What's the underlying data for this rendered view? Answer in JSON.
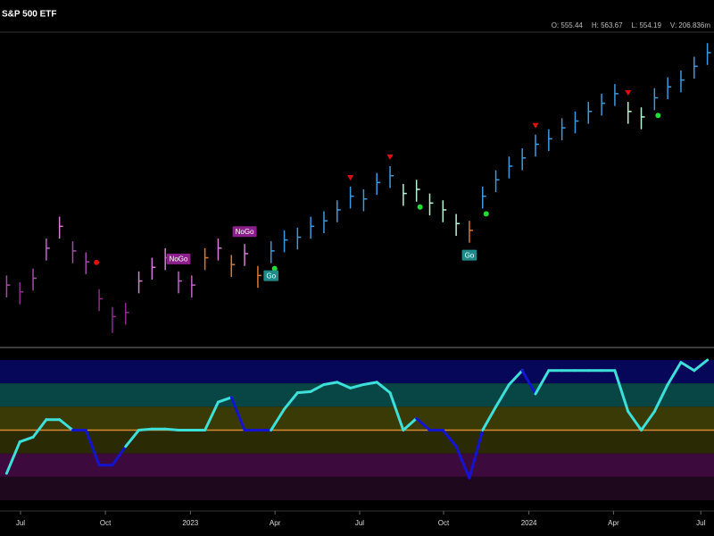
{
  "chart_data": [
    {
      "type": "ohlc",
      "title": "S&P 500 ETF",
      "quote": [
        "O: 555.44",
        "H: 563.67",
        "L: 554.19",
        "V: 206.836m"
      ],
      "xlim": [
        0,
        54
      ],
      "ylim": [
        340,
        570
      ],
      "close": [
        385,
        380,
        390,
        412,
        428,
        410,
        402,
        375,
        362,
        365,
        388,
        398,
        405,
        388,
        385,
        405,
        412,
        400,
        408,
        392,
        410,
        418,
        420,
        428,
        432,
        440,
        450,
        448,
        460,
        465,
        452,
        455,
        445,
        440,
        430,
        425,
        450,
        462,
        472,
        478,
        488,
        492,
        500,
        505,
        512,
        518,
        525,
        512,
        508,
        522,
        530,
        535,
        545,
        555
      ],
      "high": [
        392,
        387,
        397,
        419,
        435,
        417,
        409,
        382,
        369,
        372,
        395,
        405,
        412,
        395,
        392,
        412,
        419,
        407,
        415,
        399,
        417,
        425,
        427,
        435,
        439,
        447,
        457,
        455,
        467,
        472,
        459,
        462,
        452,
        447,
        437,
        432,
        457,
        469,
        479,
        485,
        495,
        499,
        507,
        512,
        519,
        525,
        532,
        519,
        515,
        529,
        537,
        542,
        552,
        562
      ],
      "low": [
        376,
        371,
        381,
        403,
        419,
        401,
        393,
        366,
        350,
        356,
        379,
        389,
        396,
        379,
        376,
        396,
        403,
        391,
        399,
        383,
        401,
        409,
        411,
        419,
        423,
        431,
        441,
        439,
        451,
        456,
        443,
        446,
        436,
        431,
        421,
        416,
        441,
        453,
        463,
        469,
        479,
        483,
        491,
        496,
        503,
        509,
        516,
        503,
        499,
        513,
        521,
        526,
        536,
        546
      ],
      "bar_colors": [
        "#a24ca8",
        "#8c2d8c",
        "#a24ca8",
        "#c066c6",
        "#d47fd4",
        "#a24ca8",
        "#a24ca8",
        "#8c2d8c",
        "#8c2d8c",
        "#8c2d8c",
        "#d47fd4",
        "#d47fd4",
        "#d47fd4",
        "#c066c6",
        "#c066c6",
        "#d87a30",
        "#d47fd4",
        "#d87a30",
        "#d47fd4",
        "#d87a30",
        "#3b9be0",
        "#3b9be0",
        "#3b9be0",
        "#3b9be0",
        "#3b9be0",
        "#3b9be0",
        "#3b9be0",
        "#3b9be0",
        "#3b9be0",
        "#3b9be0",
        "#b6f5d0",
        "#b6f5d0",
        "#b6f5d0",
        "#b6f5d0",
        "#b6f5d0",
        "#d87a30",
        "#3b9be0",
        "#3b9be0",
        "#3b9be0",
        "#3b9be0",
        "#3b9be0",
        "#3b9be0",
        "#3b9be0",
        "#3b9be0",
        "#3b9be0",
        "#3b9be0",
        "#3b9be0",
        "#b6f5d0",
        "#b6f5d0",
        "#3b9be0",
        "#3b9be0",
        "#3b9be0",
        "#3b9be0",
        "#3b9be0"
      ],
      "sell_signals": [
        26,
        29,
        40,
        47
      ],
      "sell_color": "#e01010",
      "go_dots": [
        20,
        31,
        36,
        49
      ],
      "go_dot_color": "#22dd33",
      "nogo_dots": [
        7
      ],
      "nogo_dot_color": "#e01010",
      "annotations": [
        {
          "text": "NoGo",
          "x": 13,
          "position": "above",
          "color": "#8b1f8b"
        },
        {
          "text": "NoGo",
          "x": 18,
          "position": "above",
          "color": "#8b1f8b"
        },
        {
          "text": "Go",
          "x": 20,
          "position": "below",
          "color": "#1f8a8a"
        },
        {
          "text": "Go",
          "x": 35,
          "position": "below",
          "color": "#1f8a8a"
        }
      ]
    },
    {
      "type": "oscillator",
      "xlim": [
        0,
        54
      ],
      "ylim": [
        -6,
        6
      ],
      "values": [
        -3.7,
        -1.0,
        -0.6,
        0.9,
        0.9,
        0.0,
        0.0,
        -3.0,
        -3.0,
        -1.4,
        0.0,
        0.1,
        0.1,
        0.0,
        0.0,
        0.0,
        2.4,
        2.8,
        0.0,
        0.0,
        0.0,
        1.8,
        3.2,
        3.3,
        3.9,
        4.1,
        3.6,
        3.9,
        4.1,
        3.2,
        0.0,
        1.0,
        0.0,
        0.0,
        -1.4,
        -4.1,
        0.0,
        2.0,
        3.9,
        5.1,
        3.1,
        5.1,
        5.1,
        5.1,
        5.1,
        5.1,
        5.1,
        1.6,
        0.0,
        1.6,
        3.9,
        5.8,
        5.1,
        6.0
      ],
      "line_colors": [
        "#3de0d8",
        "#3de0d8",
        "#3de0d8",
        "#3de0d8",
        "#3de0d8",
        "#3de0d8",
        "#1414d0",
        "#1414d0",
        "#1414d0",
        "#1414d0",
        "#3de0d8",
        "#3de0d8",
        "#3de0d8",
        "#3de0d8",
        "#3de0d8",
        "#3de0d8",
        "#3de0d8",
        "#3de0d8",
        "#1414d0",
        "#1414d0",
        "#1414d0",
        "#3de0d8",
        "#3de0d8",
        "#3de0d8",
        "#3de0d8",
        "#3de0d8",
        "#3de0d8",
        "#3de0d8",
        "#3de0d8",
        "#3de0d8",
        "#3de0d8",
        "#3de0d8",
        "#1414d0",
        "#1414d0",
        "#1414d0",
        "#1414d0",
        "#1414d0",
        "#3de0d8",
        "#3de0d8",
        "#3de0d8",
        "#1414d0",
        "#3de0d8",
        "#3de0d8",
        "#3de0d8",
        "#3de0d8",
        "#3de0d8",
        "#3de0d8",
        "#3de0d8",
        "#3de0d8",
        "#3de0d8",
        "#3de0d8",
        "#3de0d8",
        "#3de0d8",
        "#3de0d8"
      ],
      "band_colors": [
        "#07075a",
        "#084646",
        "#3a3a06",
        "#2a2a05",
        "#3c0a3c",
        "#1e081e"
      ],
      "reference_line": 0,
      "reference_color": "#d88a30",
      "xticks": [
        {
          "value": 1.55,
          "label": "Jul"
        },
        {
          "value": 7.97,
          "label": "Oct"
        },
        {
          "value": 14.4,
          "label": "2023"
        },
        {
          "value": 20.8,
          "label": "Apr"
        },
        {
          "value": 27.2,
          "label": "Jul"
        },
        {
          "value": 33.55,
          "label": "Oct"
        },
        {
          "value": 40.0,
          "label": "2024"
        },
        {
          "value": 46.4,
          "label": "Apr"
        },
        {
          "value": 53.0,
          "label": "Jul"
        }
      ]
    }
  ]
}
